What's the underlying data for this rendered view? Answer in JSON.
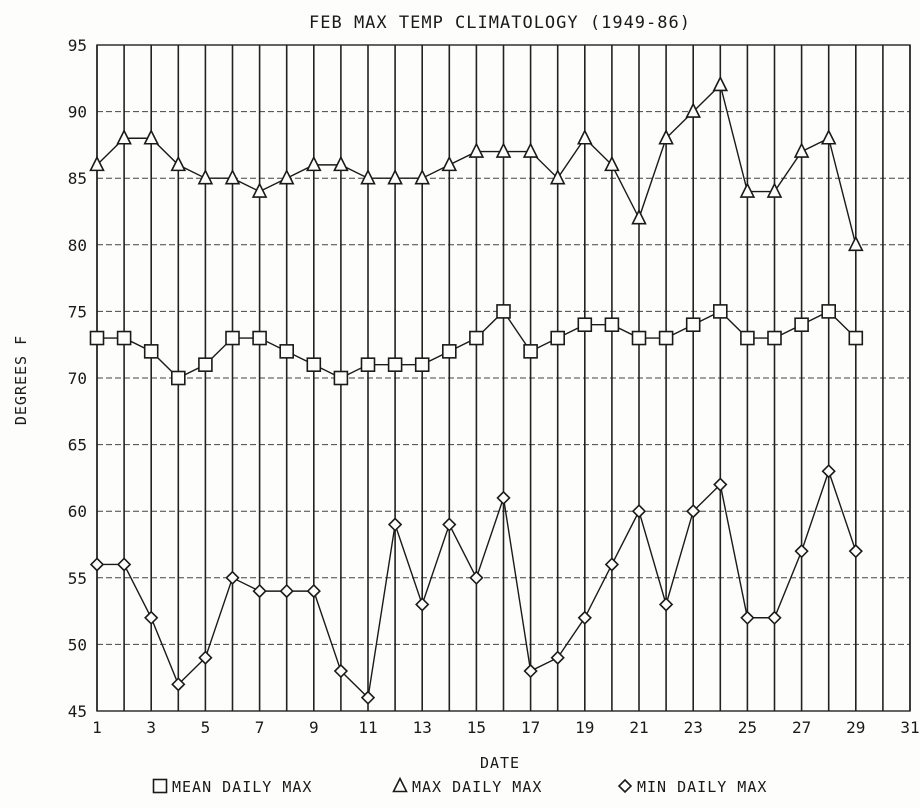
{
  "chart_data": {
    "type": "line",
    "title": "FEB MAX TEMP CLIMATOLOGY (1949-86)",
    "xlabel": "DATE",
    "ylabel": "DEGREES F",
    "xlim": [
      1,
      31
    ],
    "ylim": [
      45,
      95
    ],
    "xticks": [
      1,
      3,
      5,
      7,
      9,
      11,
      13,
      15,
      17,
      19,
      21,
      23,
      25,
      27,
      29,
      31
    ],
    "xtick_labels": [
      "1",
      "3",
      "5",
      "7",
      "9",
      "11",
      "13",
      "15",
      "17",
      "19",
      "21",
      "23",
      "25",
      "27",
      "29",
      "31"
    ],
    "yticks": [
      45,
      50,
      55,
      60,
      65,
      70,
      75,
      80,
      85,
      90,
      95
    ],
    "ytick_labels": [
      "45",
      "50",
      "55",
      "60",
      "65",
      "70",
      "75",
      "80",
      "85",
      "90",
      "95"
    ],
    "grid": true,
    "legend_position": "bottom",
    "x": [
      1,
      2,
      3,
      4,
      5,
      6,
      7,
      8,
      9,
      10,
      11,
      12,
      13,
      14,
      15,
      16,
      17,
      18,
      19,
      20,
      21,
      22,
      23,
      24,
      25,
      26,
      27,
      28,
      29
    ],
    "series": [
      {
        "name": "MEAN DAILY MAX",
        "legend_label": "MEAN DAILY MAX",
        "marker": "square",
        "values": [
          73,
          73,
          72,
          70,
          71,
          73,
          73,
          72,
          71,
          70,
          71,
          71,
          71,
          72,
          73,
          75,
          72,
          73,
          74,
          74,
          73,
          73,
          74,
          75,
          73,
          73,
          74,
          75,
          73
        ]
      },
      {
        "name": "MAX DAILY MAX",
        "legend_label": "MAX DAILY MAX",
        "marker": "triangle",
        "values": [
          86,
          88,
          88,
          86,
          85,
          85,
          84,
          85,
          86,
          86,
          85,
          85,
          85,
          86,
          87,
          87,
          87,
          85,
          88,
          86,
          82,
          88,
          90,
          92,
          84,
          84,
          87,
          88,
          80
        ]
      },
      {
        "name": "MIN DAILY MAX",
        "legend_label": "MIN DAILY MAX",
        "marker": "diamond",
        "values": [
          56,
          56,
          52,
          47,
          49,
          55,
          54,
          54,
          54,
          48,
          46,
          59,
          53,
          59,
          55,
          61,
          48,
          49,
          52,
          56,
          60,
          53,
          60,
          62,
          52,
          52,
          57,
          63,
          57
        ]
      }
    ]
  }
}
